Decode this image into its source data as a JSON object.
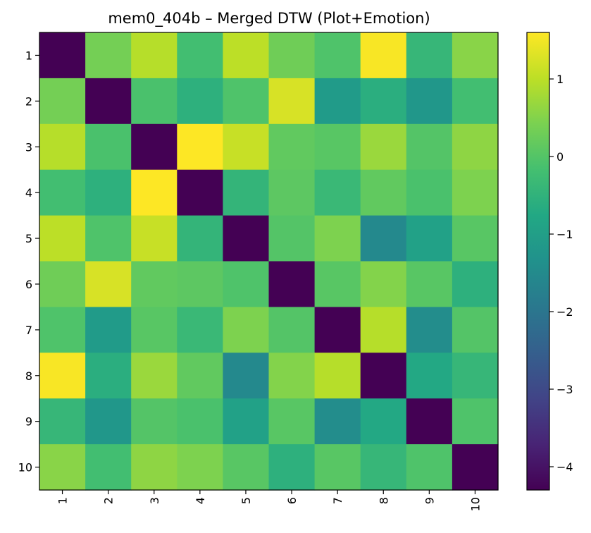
{
  "chart_data": {
    "type": "heatmap",
    "title": "mem0_404b – Merged DTW (Plot+Emotion)",
    "xlabel": "",
    "ylabel": "",
    "x_categories": [
      "1",
      "2",
      "3",
      "4",
      "5",
      "6",
      "7",
      "8",
      "9",
      "10"
    ],
    "y_categories": [
      "1",
      "2",
      "3",
      "4",
      "5",
      "6",
      "7",
      "8",
      "9",
      "10"
    ],
    "values": [
      [
        -4.3,
        0.35,
        0.95,
        -0.2,
        1.0,
        0.3,
        -0.05,
        1.55,
        -0.4,
        0.55
      ],
      [
        0.35,
        -4.3,
        -0.1,
        -0.55,
        -0.05,
        1.25,
        -1.1,
        -0.6,
        -1.2,
        -0.2
      ],
      [
        0.95,
        -0.1,
        -4.3,
        1.6,
        1.1,
        0.15,
        0.05,
        0.7,
        0.0,
        0.6
      ],
      [
        -0.2,
        -0.55,
        1.6,
        -4.3,
        -0.45,
        0.1,
        -0.35,
        0.15,
        -0.1,
        0.45
      ],
      [
        1.0,
        -0.05,
        1.1,
        -0.45,
        -4.3,
        0.0,
        0.45,
        -1.55,
        -0.95,
        0.05
      ],
      [
        0.3,
        1.25,
        0.15,
        0.1,
        -0.05,
        -4.3,
        0.05,
        0.5,
        0.05,
        -0.55
      ],
      [
        -0.05,
        -1.1,
        0.05,
        -0.35,
        0.45,
        0.0,
        -4.3,
        0.95,
        -1.45,
        0.0
      ],
      [
        1.55,
        -0.6,
        0.7,
        0.15,
        -1.55,
        0.5,
        0.95,
        -4.3,
        -0.75,
        -0.4
      ],
      [
        -0.4,
        -1.2,
        0.0,
        -0.1,
        -0.95,
        0.05,
        -1.45,
        -0.75,
        -4.3,
        -0.05
      ],
      [
        0.55,
        -0.2,
        0.6,
        0.45,
        0.05,
        -0.55,
        0.05,
        -0.4,
        -0.05,
        -4.3
      ]
    ],
    "colormap": "viridis",
    "vmin": -4.3,
    "vmax": 1.6,
    "colorbar_ticks": [
      {
        "value": 1,
        "label": "1"
      },
      {
        "value": 0,
        "label": "0"
      },
      {
        "value": -1,
        "label": "−1"
      },
      {
        "value": -2,
        "label": "−2"
      },
      {
        "value": -3,
        "label": "−3"
      },
      {
        "value": -4,
        "label": "−4"
      }
    ],
    "grid": false,
    "x_tick_rotation": "vertical",
    "colorbar_position": "right"
  }
}
